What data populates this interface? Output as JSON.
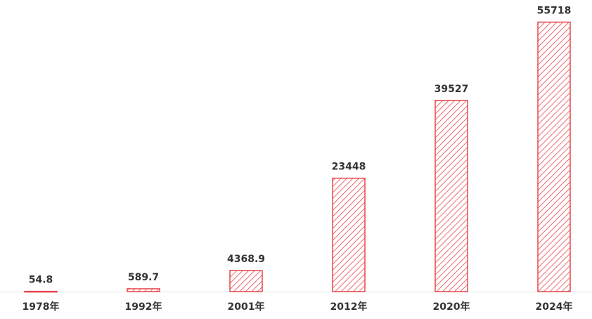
{
  "chart_data": {
    "type": "bar",
    "categories": [
      "1978年",
      "1992年",
      "2001年",
      "2012年",
      "2020年",
      "2024年"
    ],
    "values": [
      54.8,
      589.7,
      4368.9,
      23448,
      39527,
      55718
    ],
    "color": "#e8474c",
    "ylim": [
      0,
      60000
    ]
  }
}
